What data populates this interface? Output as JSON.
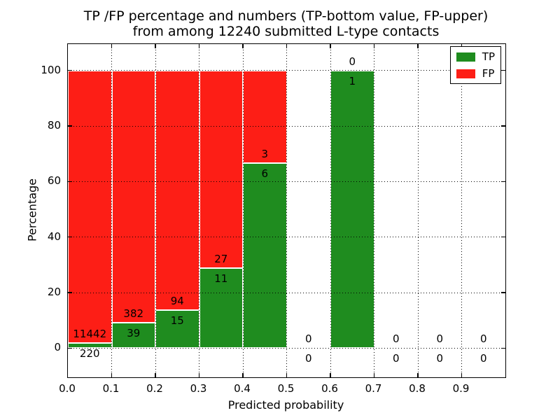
{
  "figure": {
    "title_line1": "TP /FP percentage and numbers (TP-bottom value, FP-upper)",
    "title_line2": "from among 12240 submitted L-type contacts",
    "xlabel": "Predicted probability",
    "ylabel": "Percentage"
  },
  "legend": {
    "items": [
      {
        "label": "TP",
        "color": "#1f8c1f"
      },
      {
        "label": "FP",
        "color": "#fd1e16"
      }
    ]
  },
  "colors": {
    "tp": "#1f8c1f",
    "fp": "#fd1e16",
    "bar_edge": "#ffffff",
    "grid": "#000000",
    "text": "#000000",
    "background": "#ffffff"
  },
  "chart_data": {
    "type": "bar",
    "stacked": true,
    "title": "TP /FP percentage and numbers (TP-bottom value, FP-upper) from among 12240 submitted L-type contacts",
    "xlabel": "Predicted probability",
    "ylabel": "Percentage",
    "total_contacts": 12240,
    "xlim": [
      0.0,
      1.0
    ],
    "ylim": [
      -10.5,
      109.5
    ],
    "grid": "dotted",
    "legend_position": "upper right",
    "x_tick_values": [
      0.0,
      0.1,
      0.2,
      0.3,
      0.4,
      0.5,
      0.6,
      0.7,
      0.8,
      0.9
    ],
    "x_ticks": [
      "0.0",
      "0.1",
      "0.2",
      "0.3",
      "0.4",
      "0.5",
      "0.6",
      "0.7",
      "0.8",
      "0.9"
    ],
    "y_tick_values": [
      0,
      20,
      40,
      60,
      80,
      100
    ],
    "y_ticks": [
      "0",
      "20",
      "40",
      "60",
      "80",
      "100"
    ],
    "series": [
      {
        "name": "TP",
        "values": [
          220,
          39,
          15,
          11,
          6,
          0,
          1,
          0,
          0,
          0
        ]
      },
      {
        "name": "FP",
        "values": [
          11442,
          382,
          94,
          27,
          3,
          0,
          0,
          0,
          0,
          0
        ]
      }
    ],
    "bins": [
      {
        "range": [
          0.0,
          0.1
        ],
        "tp": 220,
        "fp": 11442,
        "tp_pct": 1.89,
        "has_bar": true
      },
      {
        "range": [
          0.1,
          0.2
        ],
        "tp": 39,
        "fp": 382,
        "tp_pct": 9.26,
        "has_bar": true
      },
      {
        "range": [
          0.2,
          0.3
        ],
        "tp": 15,
        "fp": 94,
        "tp_pct": 13.76,
        "has_bar": true
      },
      {
        "range": [
          0.3,
          0.4
        ],
        "tp": 11,
        "fp": 27,
        "tp_pct": 28.95,
        "has_bar": true
      },
      {
        "range": [
          0.4,
          0.5
        ],
        "tp": 6,
        "fp": 3,
        "tp_pct": 66.67,
        "has_bar": true
      },
      {
        "range": [
          0.5,
          0.6
        ],
        "tp": 0,
        "fp": 0,
        "tp_pct": 0,
        "has_bar": false
      },
      {
        "range": [
          0.6,
          0.7
        ],
        "tp": 1,
        "fp": 0,
        "tp_pct": 100,
        "has_bar": true
      },
      {
        "range": [
          0.7,
          0.8
        ],
        "tp": 0,
        "fp": 0,
        "tp_pct": 0,
        "has_bar": false
      },
      {
        "range": [
          0.8,
          0.9
        ],
        "tp": 0,
        "fp": 0,
        "tp_pct": 0,
        "has_bar": false
      },
      {
        "range": [
          0.9,
          1.0
        ],
        "tp": 0,
        "fp": 0,
        "tp_pct": 0,
        "has_bar": false
      }
    ]
  }
}
